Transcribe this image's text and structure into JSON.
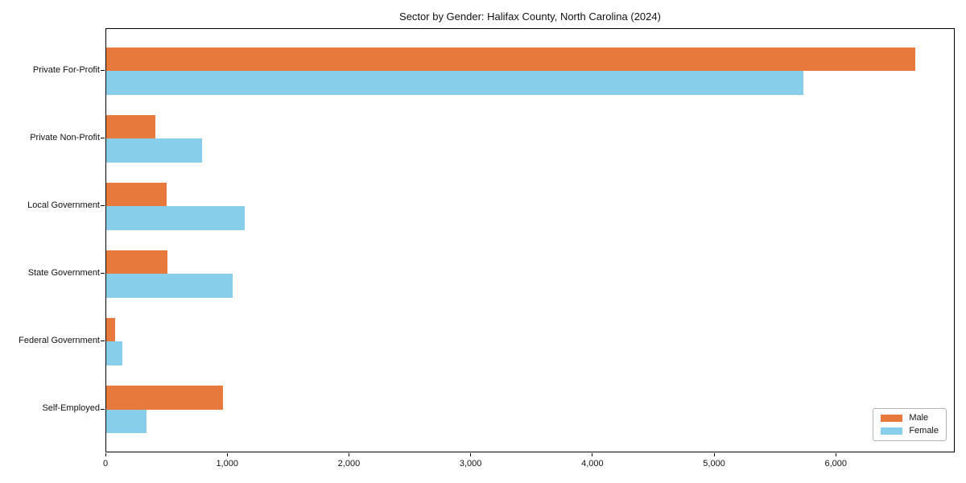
{
  "chart_data": {
    "type": "bar",
    "orientation": "horizontal",
    "title": "Sector by Gender: Halifax County, North Carolina (2024)",
    "categories": [
      "Private For-Profit",
      "Private Non-Profit",
      "Local Government",
      "State Government",
      "Federal Government",
      "Self-Employed"
    ],
    "series": [
      {
        "name": "Male",
        "color": "#e8793d",
        "values": [
          6645,
          405,
          495,
          500,
          70,
          960
        ]
      },
      {
        "name": "Female",
        "color": "#87ceeb",
        "values": [
          5725,
          785,
          1135,
          1040,
          130,
          330
        ]
      }
    ],
    "xlabel": "",
    "ylabel": "",
    "xlim": [
      0,
      6977
    ],
    "x_ticks": [
      {
        "value": 0,
        "label": "0"
      },
      {
        "value": 1000,
        "label": "1,000"
      },
      {
        "value": 2000,
        "label": "2,000"
      },
      {
        "value": 3000,
        "label": "3,000"
      },
      {
        "value": 4000,
        "label": "4,000"
      },
      {
        "value": 5000,
        "label": "5,000"
      },
      {
        "value": 6000,
        "label": "6,000"
      }
    ],
    "grid": false,
    "legend": {
      "position": "lower right",
      "labels": [
        "Male",
        "Female"
      ]
    },
    "style": {
      "axis_color": "#000000",
      "text_color": "#111111",
      "background": "#ffffff"
    }
  }
}
